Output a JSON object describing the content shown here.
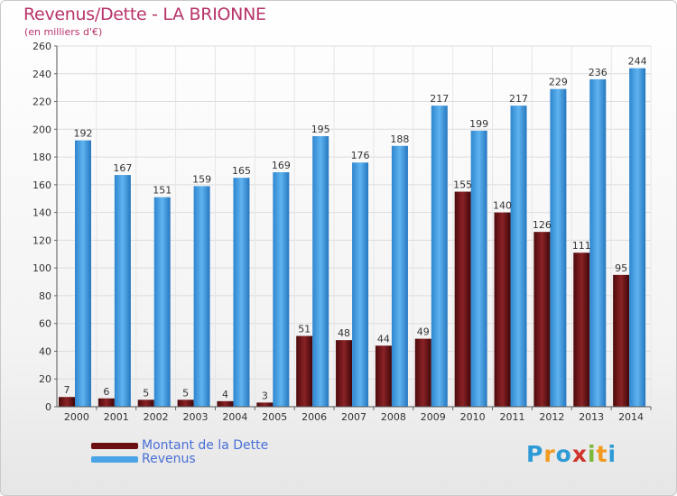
{
  "header": {
    "title": "Revenus/Dette - LA BRIONNE",
    "subtitle": "(en milliers d'€)"
  },
  "legend": [
    {
      "label": "Montant de la Dette",
      "color": "#6b0f12"
    },
    {
      "label": "Revenus",
      "color": "#4aa3e6"
    }
  ],
  "logo": {
    "text": "Proxiti"
  },
  "chart_data": {
    "type": "bar",
    "categories": [
      "2000",
      "2001",
      "2002",
      "2003",
      "2004",
      "2005",
      "2006",
      "2007",
      "2008",
      "2009",
      "2010",
      "2011",
      "2012",
      "2013",
      "2014"
    ],
    "series": [
      {
        "name": "Montant de la Dette",
        "color": "#6b0f12",
        "values": [
          7,
          6,
          5,
          5,
          4,
          3,
          51,
          48,
          44,
          49,
          155,
          140,
          126,
          111,
          95
        ]
      },
      {
        "name": "Revenus",
        "color": "#4aa3e6",
        "values": [
          192,
          167,
          151,
          159,
          165,
          169,
          195,
          176,
          188,
          217,
          199,
          217,
          229,
          236,
          244
        ]
      }
    ],
    "title": "Revenus/Dette - LA BRIONNE",
    "subtitle": "(en milliers d'€)",
    "ylim": [
      0,
      260
    ],
    "yticks": [
      0,
      20,
      40,
      60,
      80,
      100,
      120,
      140,
      160,
      180,
      200,
      220,
      240,
      260
    ],
    "grid": true,
    "legend_position": "bottom-left"
  }
}
